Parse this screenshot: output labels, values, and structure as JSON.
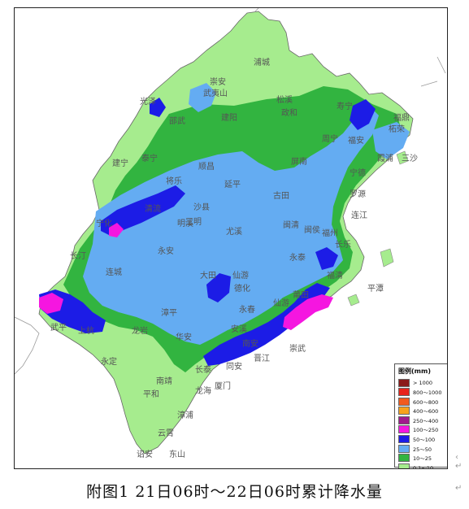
{
  "caption": "附图1 21日06时～22日06时累计降水量",
  "legend": {
    "title": "图例(mm)",
    "items": [
      {
        "label": "> 1000",
        "color": "#8b1a1a"
      },
      {
        "label": "800～1000",
        "color": "#e8241c"
      },
      {
        "label": "600～800",
        "color": "#f25a1e"
      },
      {
        "label": "400～600",
        "color": "#f7a21b"
      },
      {
        "label": "250～400",
        "color": "#a21b8c"
      },
      {
        "label": "100～250",
        "color": "#f516e0"
      },
      {
        "label": "50～100",
        "color": "#1c1ce6"
      },
      {
        "label": "25～50",
        "color": "#64acf2"
      },
      {
        "label": "10～25",
        "color": "#32b440"
      },
      {
        "label": "0.1～10",
        "color": "#a6ec8e"
      }
    ]
  },
  "places": [
    {
      "name": "浦城"
    },
    {
      "name": "崇安"
    },
    {
      "name": "武夷山"
    },
    {
      "name": "光泽"
    },
    {
      "name": "松溪"
    },
    {
      "name": "政和"
    },
    {
      "name": "寿宁"
    },
    {
      "name": "邵武"
    },
    {
      "name": "建阳"
    },
    {
      "name": "福鼎"
    },
    {
      "name": "柘荣"
    },
    {
      "name": "周宁"
    },
    {
      "name": "福安"
    },
    {
      "name": "霞浦"
    },
    {
      "name": "三沙"
    },
    {
      "name": "建宁"
    },
    {
      "name": "泰宁"
    },
    {
      "name": "顺昌"
    },
    {
      "name": "屏南"
    },
    {
      "name": "将乐"
    },
    {
      "name": "延平"
    },
    {
      "name": "古田"
    },
    {
      "name": "宁德"
    },
    {
      "name": "罗源"
    },
    {
      "name": "连江"
    },
    {
      "name": "明溪"
    },
    {
      "name": "沙县"
    },
    {
      "name": "尤溪"
    },
    {
      "name": "闽清"
    },
    {
      "name": "闽侯"
    },
    {
      "name": "福州"
    },
    {
      "name": "长乐"
    },
    {
      "name": "清流"
    },
    {
      "name": "三明"
    },
    {
      "name": "宁化"
    },
    {
      "name": "永安"
    },
    {
      "name": "大田"
    },
    {
      "name": "仙游"
    },
    {
      "name": "永泰"
    },
    {
      "name": "福清"
    },
    {
      "name": "长汀"
    },
    {
      "name": "连城"
    },
    {
      "name": "德化"
    },
    {
      "name": "平潭"
    },
    {
      "name": "漳平"
    },
    {
      "name": "永春"
    },
    {
      "name": "仙游"
    },
    {
      "name": "莆田"
    },
    {
      "name": "武平"
    },
    {
      "name": "上杭"
    },
    {
      "name": "龙岩"
    },
    {
      "name": "安溪"
    },
    {
      "name": "南安"
    },
    {
      "name": "崇武"
    },
    {
      "name": "华安"
    },
    {
      "name": "晋江"
    },
    {
      "name": "同安"
    },
    {
      "name": "永定"
    },
    {
      "name": "长泰"
    },
    {
      "name": "南靖"
    },
    {
      "name": "平和"
    },
    {
      "name": "龙海"
    },
    {
      "name": "厦门"
    },
    {
      "name": "漳浦"
    },
    {
      "name": "云霄"
    },
    {
      "name": "诏安"
    },
    {
      "name": "东山"
    }
  ]
}
